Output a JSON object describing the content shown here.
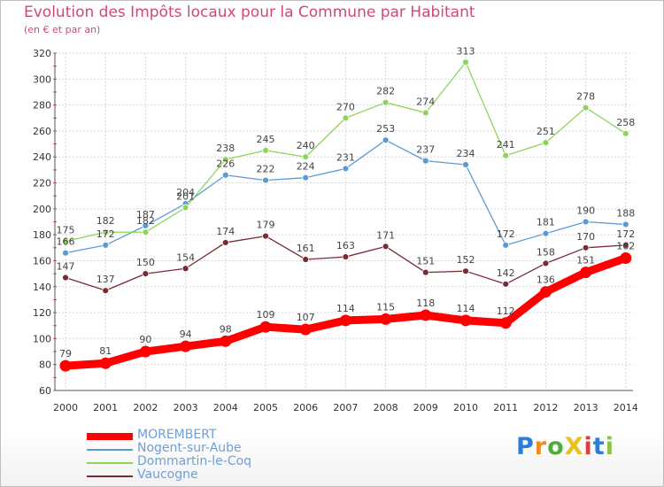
{
  "title": "Evolution des Impôts locaux pour la Commune par Habitant",
  "subtitle": "(en € et par an)",
  "logo": {
    "text": "ProXiti",
    "colors": [
      "#2a7fd4",
      "#f08a1c",
      "#4fae3a",
      "#e8c21a",
      "#d94040",
      "#2a7fd4",
      "#8bc34a"
    ]
  },
  "chart_data": {
    "type": "line",
    "title": "Evolution des Impôts locaux pour la Commune par Habitant",
    "subtitle": "(en € et par an)",
    "xlabel": "",
    "ylabel": "",
    "x": [
      "2000",
      "2001",
      "2002",
      "2003",
      "2004",
      "2005",
      "2006",
      "2007",
      "2008",
      "2009",
      "2010",
      "2011",
      "2012",
      "2013",
      "2014"
    ],
    "ylim": [
      60,
      320
    ],
    "yticks": [
      "60",
      "80",
      "100",
      "120",
      "140",
      "160",
      "180",
      "200",
      "220",
      "240",
      "260",
      "280",
      "300",
      "320"
    ],
    "grid": true,
    "legend": "bottom-left",
    "series": [
      {
        "name": "Nogent-sur-Aube",
        "color": "#5b9bd5",
        "values": [
          166,
          172,
          187,
          204,
          226,
          222,
          224,
          231,
          253,
          237,
          234,
          172,
          181,
          190,
          188
        ],
        "labels": [
          "166",
          "172",
          "187",
          "204",
          "226",
          "222",
          "224",
          "231",
          "253",
          "237",
          "234",
          "172",
          "181",
          "190",
          "188"
        ]
      },
      {
        "name": "Dommartin-le-Coq",
        "color": "#8ed45a",
        "values": [
          175,
          182,
          182,
          201,
          238,
          245,
          240,
          270,
          282,
          274,
          313,
          241,
          251,
          278,
          258
        ],
        "labels": [
          "175",
          "182",
          "182",
          "201",
          "238",
          "245",
          "240",
          "270",
          "282",
          "274",
          "313",
          "241",
          "251",
          "278",
          "258"
        ]
      },
      {
        "name": "Vaucogne",
        "color": "#7a2a33",
        "values": [
          147,
          137,
          150,
          154,
          174,
          179,
          161,
          163,
          171,
          151,
          152,
          142,
          158,
          170,
          172
        ],
        "labels": [
          "147",
          "137",
          "150",
          "154",
          "174",
          "179",
          "161",
          "163",
          "171",
          "151",
          "152",
          "142",
          "158",
          "170",
          "172"
        ]
      },
      {
        "name": "MOREMBERT",
        "color": "#ff0000",
        "values": [
          79,
          81,
          90,
          94,
          98,
          109,
          107,
          114,
          115,
          118,
          114,
          112,
          136,
          151,
          162
        ],
        "labels": [
          "79",
          "81",
          "90",
          "94",
          "98",
          "109",
          "107",
          "114",
          "115",
          "118",
          "114",
          "112",
          "136",
          "151",
          "162"
        ]
      }
    ]
  },
  "legend": {
    "items": [
      {
        "name": "MOREMBERT",
        "color": "#ff0000",
        "text_color": "#6f9fd8"
      },
      {
        "name": "Nogent-sur-Aube",
        "color": "#5b9bd5",
        "text_color": "#6f9fd8"
      },
      {
        "name": "Dommartin-le-Coq",
        "color": "#8ed45a",
        "text_color": "#6f9fd8"
      },
      {
        "name": "Vaucogne",
        "color": "#7a2a33",
        "text_color": "#6f9fd8"
      }
    ]
  }
}
